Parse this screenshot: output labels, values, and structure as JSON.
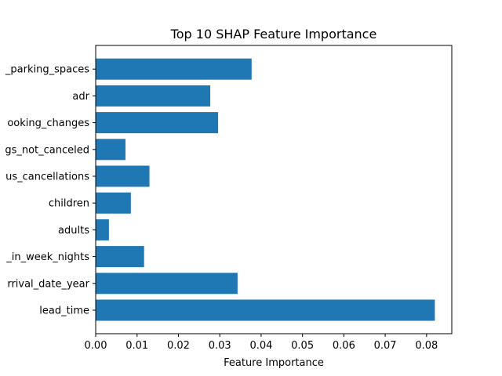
{
  "chart_data": {
    "type": "bar",
    "orientation": "horizontal",
    "title": "Top 10 SHAP Feature Importance",
    "xlabel": "Feature Importance",
    "ylabel": "",
    "categories": [
      "lead_time",
      "rrival_date_year",
      "_in_week_nights",
      "adults",
      "children",
      "us_cancellations",
      "gs_not_canceled",
      "ooking_changes",
      "adr",
      "_parking_spaces"
    ],
    "values": [
      0.082,
      0.0343,
      0.0117,
      0.0032,
      0.0085,
      0.013,
      0.0072,
      0.0296,
      0.0277,
      0.0377
    ],
    "xlim": [
      0,
      0.0861
    ],
    "xticks": [
      0.0,
      0.01,
      0.02,
      0.03,
      0.04,
      0.05,
      0.06,
      0.07,
      0.08
    ],
    "xtick_labels": [
      "0.00",
      "0.01",
      "0.02",
      "0.03",
      "0.04",
      "0.05",
      "0.06",
      "0.07",
      "0.08"
    ],
    "grid": false,
    "bar_color": "#1f77b4"
  }
}
